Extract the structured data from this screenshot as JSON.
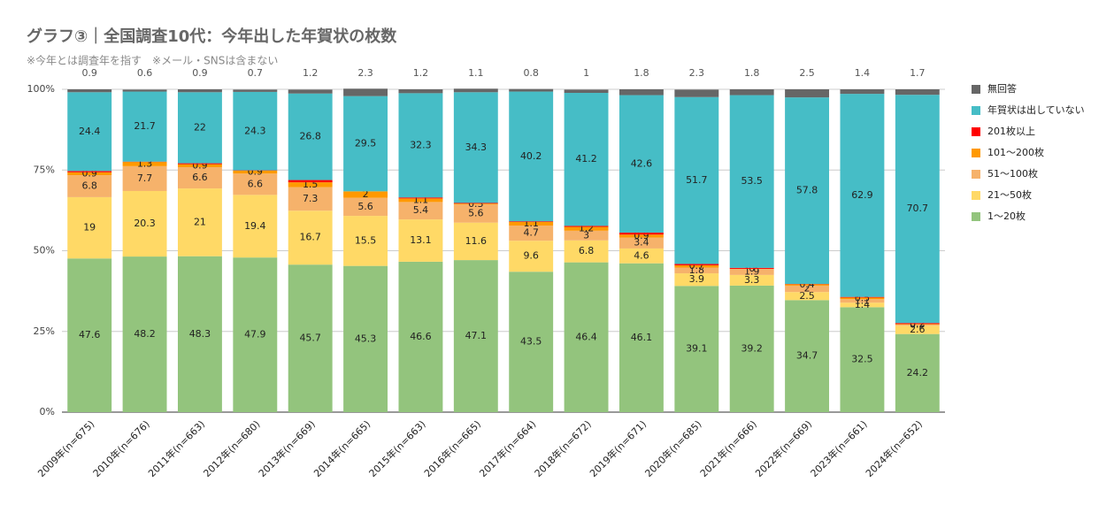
{
  "chart_data": {
    "type": "stacked_bar_100",
    "title": "グラフ③｜全国調査10代：今年出した年賀状の枚数",
    "subtitle": "※今年とは調査年を指す　※メール・SNSは含まない",
    "categories": [
      "2009年(n=675)",
      "2010年(n=676)",
      "2011年(n=663)",
      "2012年(n=680)",
      "2013年(n=669)",
      "2014年(n=665)",
      "2015年(n=663)",
      "2016年(n=665)",
      "2017年(n=664)",
      "2018年(n=672)",
      "2019年(n=671)",
      "2020年(n=685)",
      "2021年(n=666)",
      "2022年(n=669)",
      "2023年(n=661)",
      "2024年(n=652)"
    ],
    "series": [
      {
        "name": "1〜20枚",
        "color": "#93c47d",
        "values": [
          47.6,
          48.2,
          48.3,
          47.9,
          45.7,
          45.3,
          46.6,
          47.1,
          43.5,
          46.4,
          46.1,
          39.1,
          39.2,
          34.7,
          32.5,
          24.2
        ]
      },
      {
        "name": "21〜50枚",
        "color": "#ffd966",
        "values": [
          19.0,
          20.3,
          21.0,
          19.4,
          16.7,
          15.5,
          13.1,
          11.6,
          9.6,
          6.8,
          4.6,
          3.9,
          3.3,
          2.5,
          1.4,
          2.6
        ]
      },
      {
        "name": "51〜100枚",
        "color": "#f6b26b",
        "values": [
          6.8,
          7.7,
          6.6,
          6.6,
          7.3,
          5.6,
          5.4,
          5.6,
          4.7,
          3.0,
          3.4,
          1.8,
          1.9,
          2.0,
          1.1,
          0.3
        ]
      },
      {
        "name": "101〜200枚",
        "color": "#ff9900",
        "values": [
          0.9,
          1.3,
          0.9,
          0.9,
          1.5,
          2.0,
          1.1,
          0.3,
          1.1,
          1.2,
          0.9,
          0.7,
          0.0,
          0.4,
          0.5,
          0.2
        ]
      },
      {
        "name": "201枚以上",
        "color": "#ff0000",
        "values": [
          0.4,
          0.1,
          0.3,
          0.1,
          0.7,
          0.0,
          0.3,
          0.2,
          0.2,
          0.3,
          0.6,
          0.4,
          0.3,
          0.1,
          0.2,
          0.3
        ]
      },
      {
        "name": "年賀状は出していない",
        "color": "#46bdc6",
        "values": [
          24.4,
          21.7,
          22.0,
          24.3,
          26.8,
          29.5,
          32.3,
          34.3,
          40.2,
          41.2,
          42.6,
          51.7,
          53.5,
          57.8,
          62.9,
          70.7
        ]
      },
      {
        "name": "無回答",
        "color": "#666666",
        "values": [
          0.9,
          0.6,
          0.9,
          0.7,
          1.2,
          2.3,
          1.2,
          1.1,
          0.8,
          1,
          1.8,
          2.3,
          1.8,
          2.5,
          1.4,
          1.7
        ]
      }
    ],
    "ylim": [
      0,
      100
    ],
    "yticks": [
      {
        "value": 0,
        "label": "0%"
      },
      {
        "value": 25,
        "label": "25%"
      },
      {
        "value": 50,
        "label": "50%"
      },
      {
        "value": 75,
        "label": "75%"
      },
      {
        "value": 100,
        "label": "100%"
      }
    ],
    "grid": true,
    "legend": "right"
  }
}
